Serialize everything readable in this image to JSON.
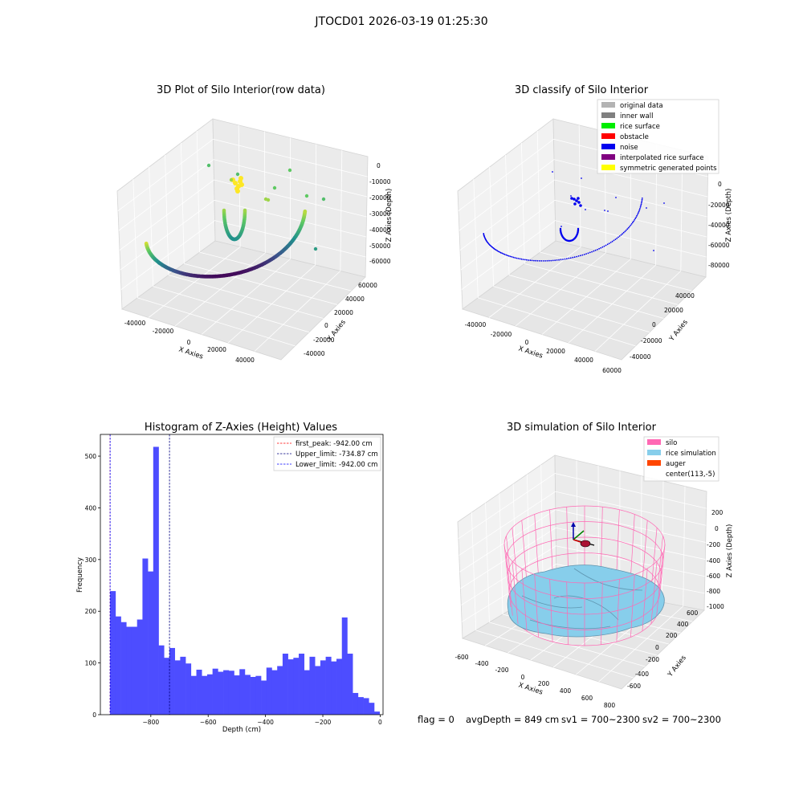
{
  "figure_title": "JTOCD01 2026-03-19 01:25:30",
  "status": {
    "flag": "flag = 0",
    "avg_depth": "avgDepth = 849 cm",
    "sv1": "sv1 = 700~2300",
    "sv2": "sv2 = 700~2300"
  },
  "chart_data": [
    {
      "id": "raw",
      "type": "scatter3d",
      "title": "3D Plot of Silo Interior(row data)",
      "xlabel": "X Axies",
      "ylabel": "Y Axies",
      "zlabel": "Z Axies (Depth)",
      "x_ticks": [
        "-40000",
        "-20000",
        "0",
        "20000",
        "40000"
      ],
      "y_ticks": [
        "-40000",
        "-20000",
        "0",
        "20000",
        "40000",
        "60000"
      ],
      "z_ticks": [
        "0",
        "-10000",
        "-20000",
        "-30000",
        "-40000",
        "-50000",
        "-60000"
      ],
      "colormap": "viridis"
    },
    {
      "id": "classify",
      "type": "scatter3d",
      "title": "3D classify of Silo Interior",
      "xlabel": "X Axies",
      "ylabel": "Y Axies",
      "zlabel": "Z Axies (Depth)",
      "x_ticks": [
        "-40000",
        "-20000",
        "0",
        "20000",
        "40000",
        "60000"
      ],
      "y_ticks": [
        "-40000",
        "-20000",
        "0",
        "20000",
        "40000"
      ],
      "z_ticks": [
        "0",
        "-20000",
        "-40000",
        "-60000",
        "-80000"
      ],
      "legend": [
        {
          "label": "original data",
          "color": "#b3b3b3"
        },
        {
          "label": "inner wall",
          "color": "#808080"
        },
        {
          "label": "rice surface",
          "color": "#00ee00"
        },
        {
          "label": "obstacle",
          "color": "#ff0000"
        },
        {
          "label": "noise",
          "color": "#0000ee"
        },
        {
          "label": "interpolated rice surface",
          "color": "#800080"
        },
        {
          "label": "symmetric generated points",
          "color": "#ffff00"
        }
      ]
    },
    {
      "id": "histogram",
      "type": "bar",
      "title": "Histogram of Z-Axies (Height) Values",
      "xlabel": "Depth (cm)",
      "ylabel": "Frequency",
      "xlim": [
        -976,
        10
      ],
      "ylim": [
        0,
        542
      ],
      "x_ticks": [
        -800,
        -600,
        -400,
        -200,
        0
      ],
      "y_ticks": [
        0,
        100,
        200,
        300,
        400,
        500
      ],
      "bar_color": "#4d4dff",
      "bin_start": -942,
      "bin_width": 18.8,
      "values": [
        239,
        190,
        179,
        170,
        170,
        184,
        302,
        277,
        518,
        134,
        110,
        129,
        105,
        112,
        99,
        75,
        87,
        75,
        78,
        89,
        83,
        86,
        85,
        76,
        88,
        77,
        73,
        75,
        66,
        91,
        86,
        94,
        118,
        107,
        110,
        118,
        86,
        112,
        94,
        105,
        112,
        103,
        108,
        188,
        118,
        42,
        34,
        32,
        23,
        6
      ],
      "vlines": [
        {
          "label": "first_peak: -942.00 cm",
          "x": -942.0,
          "color": "#ff0000"
        },
        {
          "label": "Upper_limit: -734.87 cm",
          "x": -734.87,
          "color": "#000080"
        },
        {
          "label": "Lower_limit: -942.00 cm",
          "x": -942.0,
          "color": "#0000ff"
        }
      ]
    },
    {
      "id": "simulation",
      "type": "surface3d",
      "title": "3D simulation of Silo Interior",
      "xlabel": "X Axies",
      "ylabel": "Y Axies",
      "zlabel": "Z Axies (Depth)",
      "x_ticks": [
        "-600",
        "-400",
        "-200",
        "0",
        "200",
        "400",
        "600",
        "800"
      ],
      "y_ticks": [
        "-600",
        "-400",
        "-200",
        "0",
        "200",
        "400",
        "600"
      ],
      "z_ticks": [
        "200",
        "0",
        "-200",
        "-400",
        "-600",
        "-800",
        "-1000"
      ],
      "legend": [
        {
          "label": "silo",
          "color": "#ff69b4"
        },
        {
          "label": "rice simulation",
          "color": "#87ceeb"
        },
        {
          "label": "auger",
          "color": "#ff4500"
        },
        {
          "label": "center(113,-5)",
          "color": "#ffffff"
        }
      ]
    }
  ]
}
